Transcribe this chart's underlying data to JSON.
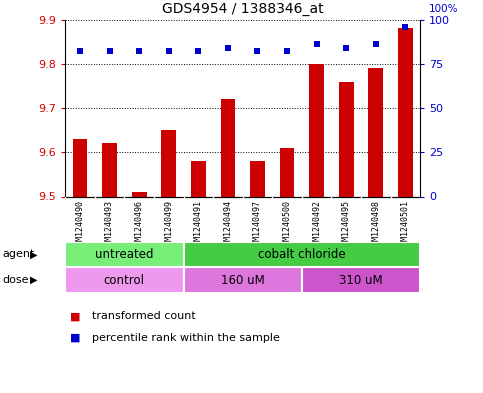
{
  "title": "GDS4954 / 1388346_at",
  "samples": [
    "GSM1240490",
    "GSM1240493",
    "GSM1240496",
    "GSM1240499",
    "GSM1240491",
    "GSM1240494",
    "GSM1240497",
    "GSM1240500",
    "GSM1240492",
    "GSM1240495",
    "GSM1240498",
    "GSM1240501"
  ],
  "bar_values": [
    9.63,
    9.62,
    9.51,
    9.65,
    9.58,
    9.72,
    9.58,
    9.61,
    9.8,
    9.76,
    9.79,
    9.88
  ],
  "blue_dot_values": [
    82,
    82,
    82,
    82,
    82,
    84,
    82,
    82,
    86,
    84,
    86,
    96
  ],
  "ymin": 9.5,
  "ymax": 9.9,
  "y_ticks": [
    9.5,
    9.6,
    9.7,
    9.8,
    9.9
  ],
  "y2_ticks": [
    0,
    25,
    50,
    75,
    100
  ],
  "bar_color": "#cc0000",
  "dot_color": "#0000cc",
  "agent_groups": [
    {
      "label": "untreated",
      "start": 0,
      "end": 4,
      "color": "#77ee77"
    },
    {
      "label": "cobalt chloride",
      "start": 4,
      "end": 12,
      "color": "#44cc44"
    }
  ],
  "dose_groups": [
    {
      "label": "control",
      "start": 0,
      "end": 4,
      "color": "#ee99ee"
    },
    {
      "label": "160 uM",
      "start": 4,
      "end": 8,
      "color": "#dd77dd"
    },
    {
      "label": "310 uM",
      "start": 8,
      "end": 12,
      "color": "#cc55cc"
    }
  ],
  "legend_items": [
    {
      "color": "#cc0000",
      "label": "transformed count"
    },
    {
      "color": "#0000cc",
      "label": "percentile rank within the sample"
    }
  ],
  "left_color": "#cc0000",
  "right_color": "#0000cc",
  "grid_color": "#000000",
  "bg_color": "#ffffff",
  "tick_bg_color": "#cccccc",
  "bar_bottom": 9.5,
  "bar_width": 0.5
}
